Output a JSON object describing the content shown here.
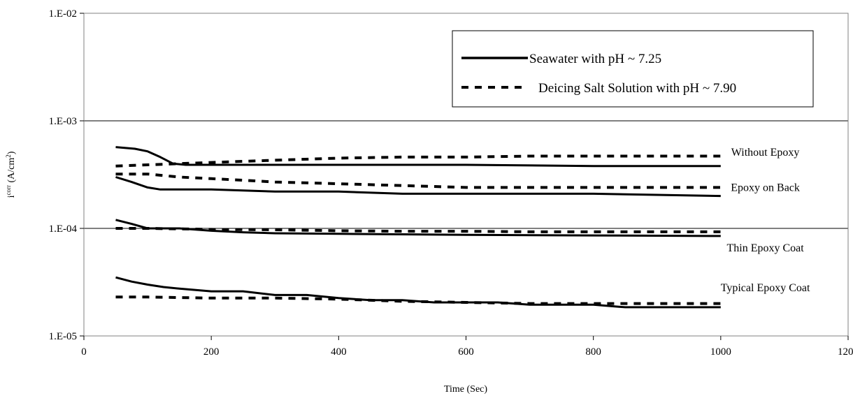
{
  "chart_data": {
    "type": "line",
    "xlabel": "Time (Sec)",
    "ylabel": "i",
    "ylabel_sup": "corr",
    "ylabel_rest": " (A/cm",
    "ylabel_sup2": "2",
    "ylabel_close": ")",
    "xlim": [
      0,
      1200
    ],
    "ylim": [
      1e-05,
      0.01
    ],
    "yscale": "log",
    "x_ticks": [
      0,
      200,
      400,
      600,
      800,
      1000,
      1200
    ],
    "x_tick_labels": [
      "0",
      "200",
      "400",
      "600",
      "800",
      "1000",
      "1200"
    ],
    "y_ticks": [
      0.01,
      0.001,
      0.0001,
      1e-05
    ],
    "y_tick_labels": [
      "1.E-02",
      "1.E-03",
      "1.E-04",
      "1.E-05"
    ],
    "grid": "horizontal",
    "legend": {
      "position": "top-right",
      "entries": [
        {
          "label": "Seawater with pH ~ 7.25",
          "style": "solid"
        },
        {
          "label": "Deicing Salt Solution with pH ~ 7.90",
          "style": "dashed"
        }
      ]
    },
    "annotations": [
      {
        "text": "Without Epoxy",
        "x": 1070,
        "y": 0.00051
      },
      {
        "text": "Epoxy on Back",
        "x": 1070,
        "y": 0.00024
      },
      {
        "text": "Thin Epoxy Coat",
        "x": 1070,
        "y": 6.6e-05
      },
      {
        "text": "Typical Epoxy Coat",
        "x": 1070,
        "y": 2.8e-05
      }
    ],
    "series": [
      {
        "style": "solid",
        "x": [
          50,
          80,
          100,
          120,
          140,
          160,
          200,
          300,
          400,
          600,
          800,
          1000
        ],
        "y": [
          0.00057,
          0.00055,
          0.00052,
          0.00046,
          0.0004,
          0.00039,
          0.00039,
          0.00039,
          0.00039,
          0.00039,
          0.00038,
          0.00038
        ]
      },
      {
        "style": "dashed",
        "x": [
          50,
          100,
          150,
          200,
          300,
          400,
          500,
          600,
          700,
          800,
          900,
          1000
        ],
        "y": [
          0.00038,
          0.00039,
          0.0004,
          0.00041,
          0.00043,
          0.00045,
          0.00046,
          0.00046,
          0.00047,
          0.00047,
          0.00047,
          0.00047
        ]
      },
      {
        "style": "solid",
        "x": [
          50,
          75,
          100,
          120,
          150,
          200,
          300,
          400,
          500,
          600,
          800,
          1000
        ],
        "y": [
          0.0003,
          0.00027,
          0.00024,
          0.00023,
          0.00023,
          0.00023,
          0.00022,
          0.00022,
          0.00021,
          0.00021,
          0.00021,
          0.0002
        ]
      },
      {
        "style": "dashed",
        "x": [
          50,
          100,
          150,
          200,
          250,
          300,
          400,
          500,
          600,
          700,
          800,
          900,
          1000
        ],
        "y": [
          0.00032,
          0.00032,
          0.0003,
          0.00029,
          0.00028,
          0.00027,
          0.00026,
          0.00025,
          0.00024,
          0.00024,
          0.00024,
          0.00024,
          0.00024
        ]
      },
      {
        "style": "solid",
        "x": [
          50,
          75,
          100,
          150,
          200,
          250,
          300,
          400,
          500,
          600,
          800,
          1000
        ],
        "y": [
          0.00012,
          0.00011,
          0.0001,
          0.0001,
          9.5e-05,
          9.2e-05,
          9e-05,
          8.9e-05,
          8.8e-05,
          8.7e-05,
          8.6e-05,
          8.5e-05
        ]
      },
      {
        "style": "dashed",
        "x": [
          50,
          100,
          200,
          300,
          400,
          500,
          600,
          700,
          800,
          900,
          1000
        ],
        "y": [
          0.0001,
          0.0001,
          9.8e-05,
          9.7e-05,
          9.5e-05,
          9.4e-05,
          9.4e-05,
          9.3e-05,
          9.3e-05,
          9.3e-05,
          9.3e-05
        ]
      },
      {
        "style": "solid",
        "x": [
          50,
          75,
          100,
          125,
          150,
          200,
          250,
          300,
          350,
          400,
          450,
          500,
          550,
          600,
          650,
          700,
          750,
          800,
          850,
          900,
          1000
        ],
        "y": [
          3.5e-05,
          3.2e-05,
          3e-05,
          2.85e-05,
          2.75e-05,
          2.6e-05,
          2.6e-05,
          2.4e-05,
          2.4e-05,
          2.25e-05,
          2.15e-05,
          2.15e-05,
          2.05e-05,
          2.05e-05,
          2.05e-05,
          1.95e-05,
          1.95e-05,
          1.95e-05,
          1.85e-05,
          1.85e-05,
          1.85e-05
        ]
      },
      {
        "style": "dashed",
        "x": [
          50,
          100,
          200,
          300,
          400,
          500,
          600,
          700,
          800,
          900,
          1000
        ],
        "y": [
          2.3e-05,
          2.3e-05,
          2.25e-05,
          2.25e-05,
          2.2e-05,
          2.1e-05,
          2.05e-05,
          2e-05,
          2e-05,
          2e-05,
          2e-05
        ]
      }
    ]
  }
}
